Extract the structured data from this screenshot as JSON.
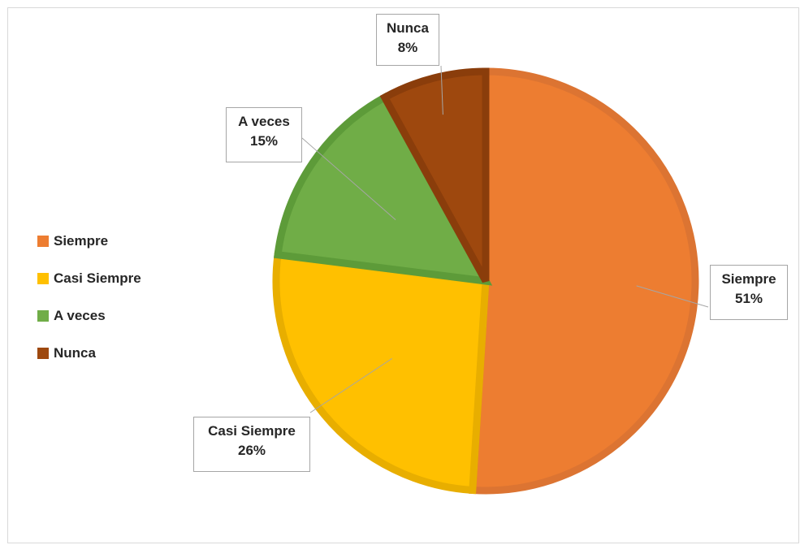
{
  "chart_data": {
    "type": "pie",
    "categories": [
      "Siempre",
      "Casi Siempre",
      "A veces",
      "Nunca"
    ],
    "values": [
      51,
      26,
      15,
      8
    ],
    "value_labels": [
      "51%",
      "26%",
      "15%",
      "8%"
    ],
    "colors": [
      "#ed7d31",
      "#ffc000",
      "#70ad47",
      "#9e480e"
    ],
    "border_colors": [
      "#dc7432",
      "#e8ae00",
      "#5d9b39",
      "#8a3d0b"
    ],
    "legend": {
      "placement": "left",
      "entries": [
        "Siempre",
        "Casi Siempre",
        "A veces",
        "Nunca"
      ]
    },
    "data_labels": {
      "show_category": true,
      "show_percent": true
    }
  }
}
